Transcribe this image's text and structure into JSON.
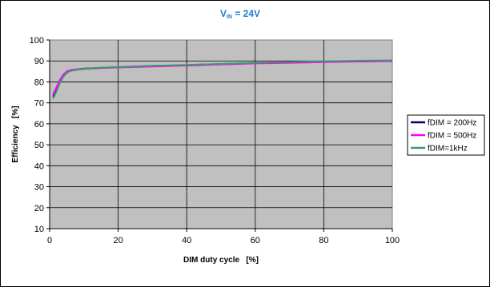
{
  "chart_data": {
    "type": "line",
    "title_main": "V",
    "title_sub": "IN",
    "title_rest": " = 24V",
    "xlabel": "DIM duty cycle   [%]",
    "ylabel": "Efficiency   [%]",
    "xlim": [
      0,
      100
    ],
    "ylim": [
      10,
      100
    ],
    "xticks": [
      "0",
      "20",
      "40",
      "60",
      "80",
      "100"
    ],
    "yticks": [
      "10",
      "20",
      "30",
      "40",
      "50",
      "60",
      "70",
      "80",
      "90",
      "100"
    ],
    "grid": "major",
    "legend_position": "right",
    "colors": {
      "plot_background": "#c0c0c0",
      "title": "#1f7ad3",
      "grid": "#000000"
    },
    "series": [
      {
        "name": "fDIM = 200Hz",
        "color": "#000066",
        "x": [
          1,
          2,
          3,
          4,
          5,
          6,
          8,
          10,
          15,
          20,
          30,
          40,
          50,
          60,
          70,
          80,
          90,
          100
        ],
        "y": [
          73,
          76.5,
          80,
          83,
          84.5,
          85.5,
          86,
          86.3,
          86.7,
          87,
          87.6,
          88,
          88.5,
          89,
          89.3,
          89.6,
          89.8,
          90
        ]
      },
      {
        "name": "fDIM = 500Hz",
        "color": "#ff00ff",
        "x": [
          1,
          2,
          3,
          4,
          5,
          6,
          8,
          10,
          15,
          20,
          30,
          40,
          50,
          60,
          70,
          80,
          90,
          100
        ],
        "y": [
          74,
          77.5,
          81,
          83.5,
          85,
          85.6,
          86,
          86.2,
          86.6,
          86.9,
          87.3,
          87.8,
          88.3,
          88.8,
          89.1,
          89.4,
          89.7,
          89.9
        ]
      },
      {
        "name": "fDIM=1kHz",
        "color": "#3a9a6a",
        "x": [
          1,
          2,
          3,
          4,
          5,
          6,
          8,
          10,
          15,
          20,
          30,
          40,
          50,
          60,
          70,
          80,
          90,
          100
        ],
        "y": [
          72,
          75.5,
          79.5,
          82.5,
          84.2,
          85.2,
          85.8,
          86.2,
          86.8,
          87.1,
          87.7,
          88.1,
          88.6,
          89.1,
          89.5,
          89.8,
          90.1,
          90.3
        ]
      }
    ]
  }
}
